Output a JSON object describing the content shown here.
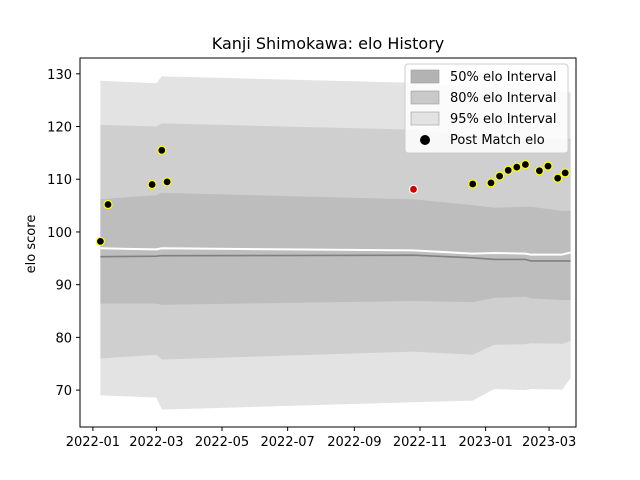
{
  "chart_data": {
    "type": "area",
    "title": "Kanji Shimokawa: elo History",
    "xlabel": "",
    "ylabel": "elo score",
    "xlim": [
      "2021-12-20",
      "2023-03-26"
    ],
    "ylim": [
      63,
      133
    ],
    "x_ticks": [
      "2022-01",
      "2022-03",
      "2022-05",
      "2022-07",
      "2022-09",
      "2022-11",
      "2023-01",
      "2023-03"
    ],
    "y_ticks": [
      70,
      80,
      90,
      100,
      110,
      120,
      130
    ],
    "grid": false,
    "legend_position": "top-right",
    "legend": [
      {
        "label": "50% elo Interval",
        "color": "#b3b3b3"
      },
      {
        "label": "80% elo Interval",
        "color": "#c9c9c9"
      },
      {
        "label": "95% elo Interval",
        "color": "#e3e3e3"
      },
      {
        "label": "Post Match elo",
        "color": "#000000"
      }
    ],
    "bands": {
      "x": [
        "2022-01-08",
        "2022-03-01",
        "2022-03-06",
        "2022-10-26",
        "2022-12-20",
        "2023-01-09",
        "2023-02-07",
        "2023-02-12",
        "2023-03-13",
        "2023-03-21"
      ],
      "p95_upper": [
        128.7,
        128.2,
        129.5,
        128.3,
        127.5,
        127.5,
        127.2,
        127.0,
        126.5,
        126.5
      ],
      "p95_lower": [
        69.0,
        68.6,
        66.3,
        67.7,
        68.0,
        70.2,
        70.0,
        70.2,
        70.1,
        72.2
      ],
      "p80_upper": [
        120.3,
        120.0,
        120.6,
        119.4,
        118.3,
        118.2,
        117.8,
        117.8,
        117.7,
        117.7
      ],
      "p80_lower": [
        76.0,
        76.7,
        75.8,
        77.3,
        76.7,
        78.6,
        78.7,
        78.9,
        78.8,
        79.3
      ],
      "p50_upper": [
        106.2,
        107.0,
        107.4,
        106.2,
        105.1,
        104.6,
        104.8,
        104.8,
        104.0,
        104.0
      ],
      "p50_lower": [
        86.4,
        86.4,
        86.2,
        86.9,
        86.7,
        87.5,
        87.7,
        87.4,
        87.1,
        87.1
      ],
      "median": [
        95.3,
        95.4,
        95.5,
        95.6,
        95.1,
        94.8,
        94.8,
        94.5,
        94.5,
        94.5
      ],
      "mean": [
        96.9,
        96.7,
        96.9,
        96.5,
        95.9,
        96.0,
        95.9,
        95.7,
        95.7,
        96.1
      ]
    },
    "series": [
      {
        "name": "Post Match elo",
        "x": [
          "2022-01-08",
          "2022-01-15",
          "2022-02-25",
          "2022-03-06",
          "2022-03-11",
          "2022-10-26",
          "2022-12-20",
          "2023-01-06",
          "2023-01-14",
          "2023-01-22",
          "2023-01-30",
          "2023-02-07",
          "2023-02-20",
          "2023-02-28",
          "2023-03-09",
          "2023-03-16"
        ],
        "y": [
          98.2,
          105.2,
          109.0,
          115.5,
          109.5,
          108.1,
          109.1,
          109.3,
          110.6,
          111.7,
          112.3,
          112.8,
          111.6,
          112.5,
          110.2,
          111.2
        ],
        "highlight": [
          false,
          false,
          false,
          false,
          false,
          true,
          false,
          false,
          false,
          false,
          false,
          false,
          false,
          false,
          false,
          false
        ]
      }
    ],
    "colors": {
      "marker_fill": "#000000",
      "marker_edge": "#ffff00",
      "highlight_fill": "#d40000",
      "highlight_edge": "#ffffff",
      "median_line": "#808080",
      "mean_line": "#ffffff"
    }
  }
}
